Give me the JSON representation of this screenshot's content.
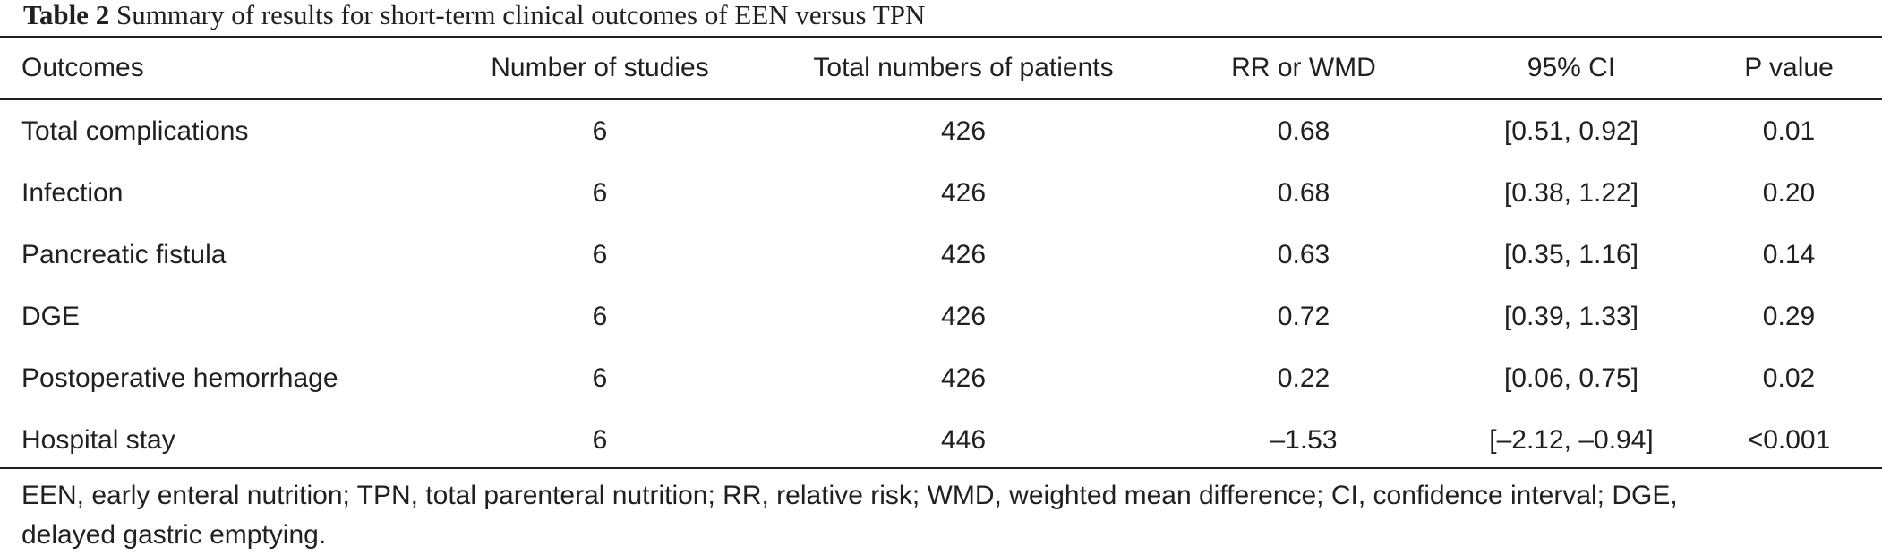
{
  "caption": {
    "label": "Table 2",
    "text": "Summary of results for short-term clinical outcomes of EEN versus TPN"
  },
  "table": {
    "headers": [
      "Outcomes",
      "Number of studies",
      "Total numbers of patients",
      "RR or WMD",
      "95% CI",
      "P value"
    ],
    "rows": [
      [
        "Total complications",
        "6",
        "426",
        "0.68",
        "[0.51, 0.92]",
        "0.01"
      ],
      [
        "Infection",
        "6",
        "426",
        "0.68",
        "[0.38, 1.22]",
        "0.20"
      ],
      [
        "Pancreatic fistula",
        "6",
        "426",
        "0.63",
        "[0.35, 1.16]",
        "0.14"
      ],
      [
        "DGE",
        "6",
        "426",
        "0.72",
        "[0.39, 1.33]",
        "0.29"
      ],
      [
        "Postoperative hemorrhage",
        "6",
        "426",
        "0.22",
        "[0.06, 0.75]",
        "0.02"
      ],
      [
        "Hospital stay",
        "6",
        "446",
        "–1.53",
        "[–2.12, –0.94]",
        "<0.001"
      ]
    ]
  },
  "footnote": {
    "line1": "EEN, early enteral nutrition; TPN, total parenteral nutrition; RR, relative risk; WMD, weighted mean difference; CI, confidence interval; DGE,",
    "line2": "delayed gastric emptying."
  }
}
